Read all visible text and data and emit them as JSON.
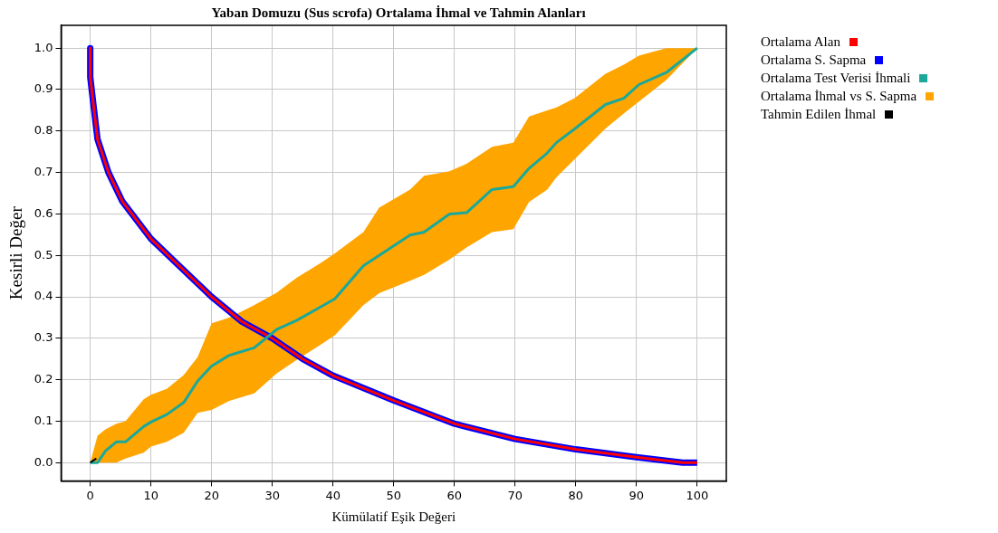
{
  "chart_data": {
    "type": "line",
    "title": "Yaban Domuzu (Sus scrofa) Ortalama İhmal ve Tahmin Alanları",
    "xlabel": "Kümülatif Eşik Değeri",
    "ylabel": "Kesirli Değer",
    "xlim": [
      -4.8,
      104.8
    ],
    "ylim": [
      -0.044,
      1.055
    ],
    "xticks": [
      0,
      10,
      20,
      30,
      40,
      50,
      60,
      70,
      80,
      90,
      100
    ],
    "yticks": [
      {
        "value": 0,
        "label": "0.0"
      },
      {
        "value": 0.1,
        "label": "0.1"
      },
      {
        "value": 0.2,
        "label": "0.2"
      },
      {
        "value": 0.3,
        "label": "0.3"
      },
      {
        "value": 0.4,
        "label": "0.4"
      },
      {
        "value": 0.5,
        "label": "0.5"
      },
      {
        "value": 0.6,
        "label": "0.6"
      },
      {
        "value": 0.7,
        "label": "0.7"
      },
      {
        "value": 0.8,
        "label": "0.8"
      },
      {
        "value": 0.9,
        "label": "0.9"
      },
      {
        "value": 1,
        "label": "1.0"
      }
    ],
    "grid": true,
    "legend": "right",
    "series": [
      {
        "name": "Ortalama Alan",
        "color": "#ff0000",
        "type": "line",
        "x": [
          0,
          0,
          0.5,
          1.2,
          3,
          5.3,
          10,
          15,
          20,
          25,
          30,
          35,
          40,
          50,
          60,
          70,
          80,
          90,
          97.6,
          100
        ],
        "values": [
          1.0,
          0.93,
          0.867,
          0.78,
          0.7,
          0.63,
          0.54,
          0.47,
          0.4,
          0.34,
          0.3,
          0.25,
          0.21,
          0.15,
          0.094,
          0.057,
          0.032,
          0.013,
          0,
          0
        ]
      },
      {
        "name": "Ortalama S. Sapma",
        "color": "#0000ff",
        "type": "line",
        "x": [
          0,
          0,
          0.5,
          1.2,
          3,
          5.3,
          10,
          15,
          20,
          25,
          30,
          35,
          40,
          50,
          60,
          70,
          80,
          90,
          97.6,
          100
        ],
        "values": [
          1.0,
          0.93,
          0.867,
          0.78,
          0.7,
          0.63,
          0.54,
          0.47,
          0.4,
          0.34,
          0.3,
          0.25,
          0.21,
          0.15,
          0.094,
          0.057,
          0.032,
          0.013,
          0,
          0
        ]
      },
      {
        "name": "Ortalama Test Verisi İhmali",
        "color": "#1aa89a",
        "type": "line",
        "x": [
          0,
          1.2,
          2.5,
          4.3,
          5.8,
          8.8,
          10,
          12.6,
          15.4,
          17.7,
          20,
          22.9,
          27,
          30.7,
          34,
          38,
          40.3,
          45,
          47.6,
          52.7,
          55,
          59.2,
          62,
          66.2,
          69.7,
          72.3,
          75.3,
          76.8,
          79.8,
          84.9,
          87.9,
          90.4,
          94.9,
          100
        ],
        "values": [
          0,
          0,
          0.028,
          0.05,
          0.05,
          0.087,
          0.098,
          0.116,
          0.145,
          0.197,
          0.233,
          0.259,
          0.277,
          0.321,
          0.343,
          0.376,
          0.395,
          0.475,
          0.5,
          0.549,
          0.556,
          0.6,
          0.603,
          0.659,
          0.666,
          0.71,
          0.747,
          0.772,
          0.805,
          0.864,
          0.879,
          0.912,
          0.941,
          1.0
        ],
        "lower": [
          0,
          0,
          0,
          0,
          0.01,
          0.024,
          0.039,
          0.05,
          0.072,
          0.12,
          0.127,
          0.149,
          0.167,
          0.215,
          0.248,
          0.285,
          0.307,
          0.38,
          0.409,
          0.439,
          0.453,
          0.49,
          0.519,
          0.556,
          0.563,
          0.629,
          0.659,
          0.688,
          0.732,
          0.806,
          0.842,
          0.871,
          0.923,
          1.0
        ],
        "upper": [
          0,
          0.065,
          0.08,
          0.094,
          0.1,
          0.153,
          0.164,
          0.178,
          0.211,
          0.255,
          0.336,
          0.35,
          0.38,
          0.41,
          0.446,
          0.482,
          0.505,
          0.556,
          0.615,
          0.659,
          0.692,
          0.703,
          0.721,
          0.762,
          0.772,
          0.835,
          0.85,
          0.857,
          0.879,
          0.938,
          0.96,
          0.982,
          1.0,
          1.0
        ]
      },
      {
        "name": "Ortalama İhmal vs S. Sapma",
        "color": "#ffa500",
        "type": "area"
      },
      {
        "name": "Tahmin Edilen İhmal",
        "color": "#000000",
        "x": [
          0,
          1
        ],
        "values": [
          0,
          0.01
        ]
      }
    ]
  }
}
